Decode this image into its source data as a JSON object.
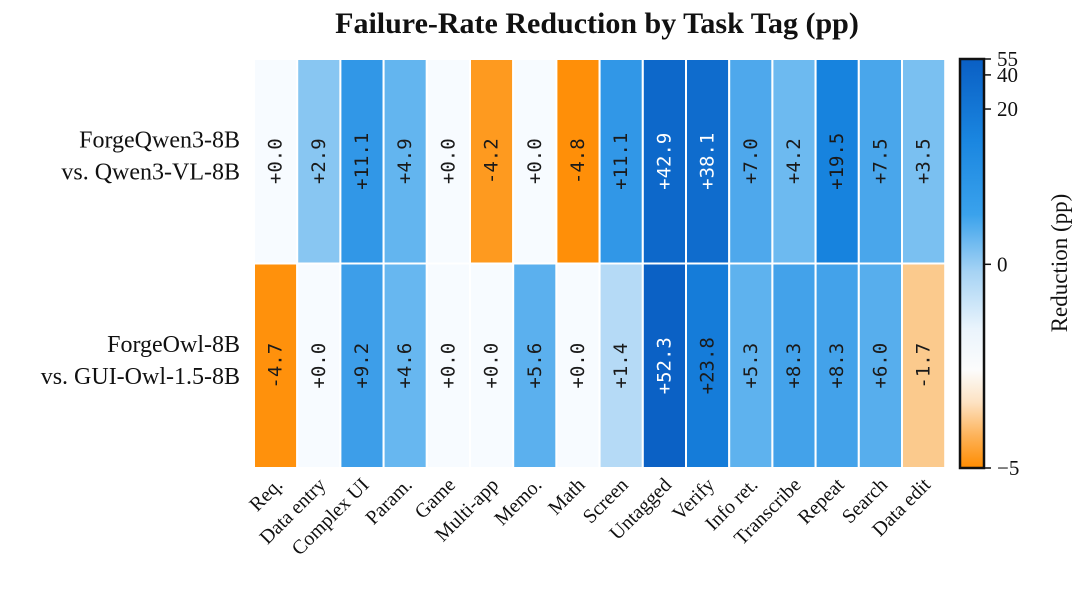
{
  "chart_data": {
    "type": "heatmap",
    "title": "Failure-Rate Reduction by Task Tag (pp)",
    "rows": [
      {
        "label_lines": [
          "ForgeQwen3-8B",
          "vs. Qwen3-VL-8B"
        ]
      },
      {
        "label_lines": [
          "ForgeOwl-8B",
          "vs. GUI-Owl-1.5-8B"
        ]
      }
    ],
    "columns": [
      "Req.",
      "Data entry",
      "Complex UI",
      "Param.",
      "Game",
      "Multi-app",
      "Memo.",
      "Math",
      "Screen",
      "Untagged",
      "Verify",
      "Info ret.",
      "Transcribe",
      "Repeat",
      "Search",
      "Data edit"
    ],
    "values": [
      [
        0.0,
        2.9,
        11.1,
        4.9,
        0.0,
        -4.2,
        0.0,
        -4.8,
        11.1,
        42.9,
        38.1,
        7.0,
        4.2,
        19.5,
        7.5,
        3.5
      ],
      [
        -4.7,
        0.0,
        9.2,
        4.6,
        0.0,
        0.0,
        5.6,
        0.0,
        1.4,
        52.3,
        23.8,
        5.3,
        8.3,
        8.3,
        6.0,
        -1.7
      ]
    ],
    "cell_labels": [
      [
        "+0.0",
        "+2.9",
        "+11.1",
        "+4.9",
        "+0.0",
        "-4.2",
        "+0.0",
        "-4.8",
        "+11.1",
        "+42.9",
        "+38.1",
        "+7.0",
        "+4.2",
        "+19.5",
        "+7.5",
        "+3.5"
      ],
      [
        "-4.7",
        "+0.0",
        "+9.2",
        "+4.6",
        "+0.0",
        "+0.0",
        "+5.6",
        "+0.0",
        "+1.4",
        "+52.3",
        "+23.8",
        "+5.3",
        "+8.3",
        "+8.3",
        "+6.0",
        "-1.7"
      ]
    ],
    "colorbar": {
      "label": "Reduction (pp)",
      "range": [
        -5,
        55
      ],
      "ticks": [
        55,
        40,
        20,
        0,
        -5
      ],
      "scale": "symmetric-log",
      "negative_color": "#ff8c00",
      "zero_color": "#f7fbff",
      "positive_color": "#0a5fc4"
    }
  }
}
